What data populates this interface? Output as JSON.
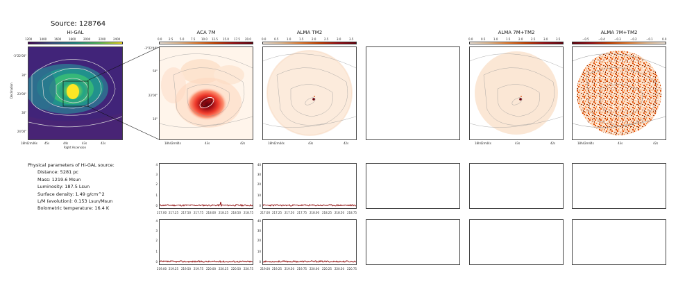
{
  "page": {
    "title": "Source: 128764"
  },
  "panels": {
    "higal": {
      "title": "Hi-GAL",
      "colorbar_ticks": [
        "1200",
        "1400",
        "1600",
        "1800",
        "2000",
        "2200",
        "2400"
      ],
      "y_ticks": [
        "-3°22'00\"",
        "30\"",
        "23'00\"",
        "30\"",
        "24'00\""
      ],
      "x_ticks": [
        "18h42m46s",
        "45s",
        "44s",
        "43s",
        "42s"
      ],
      "xlabel": "Right Ascension",
      "ylabel": "Declination"
    },
    "aca": {
      "title": "ACA 7M",
      "colorbar_ticks": [
        "0.0",
        "2.5",
        "5.0",
        "7.5",
        "10.0",
        "12.5",
        "15.0",
        "17.5",
        "20.0"
      ],
      "y_ticks": [
        "-3°22'40\"",
        "50\"",
        "23'00\"",
        "10\""
      ],
      "x_ticks": [
        "18h42m44s",
        "43s",
        "42s"
      ]
    },
    "tm2": {
      "title": "ALMA TM2",
      "colorbar_ticks": [
        "0.0",
        "0.5",
        "1.0",
        "1.5",
        "2.0",
        "2.5",
        "3.0",
        "3.5"
      ],
      "x_ticks": [
        "18h42m44s",
        "43s",
        "42s"
      ]
    },
    "combo": {
      "title": "ALMA 7M+TM2",
      "colorbar_ticks": [
        "0.0",
        "0.5",
        "1.0",
        "1.5",
        "2.0",
        "2.5",
        "3.0",
        "3.5"
      ],
      "x_ticks": [
        "18h42m44s",
        "43s",
        "42s"
      ]
    },
    "diff": {
      "title": "ALMA 7M+TM2",
      "colorbar_ticks": [
        "−0.5",
        "−0.4",
        "−0.3",
        "−0.2",
        "−0.1",
        "0.0"
      ],
      "x_ticks": [
        "18h42m44s",
        "43s",
        "42s"
      ]
    }
  },
  "parameters": {
    "heading": "Physical parameters of Hi-GAL source:",
    "distance": "Distance: 5281 pc",
    "mass": "Mass: 1219.6 Msun",
    "luminosity": "Luminosity: 187.5 Lsun",
    "surface_density": "Surface density: 1.49 g/cm^2",
    "lm": "L/M (evolution): 0.153 Lsun/Msun",
    "tbol": "Bolometric temperature: 16.4 K"
  },
  "spectra": {
    "row1": {
      "a_y_ticks": [
        "4",
        "3",
        "2",
        "1",
        "0"
      ],
      "b_y_ticks": [
        "40",
        "30",
        "20",
        "10",
        "0"
      ],
      "x_ticks": [
        "217.00",
        "217.25",
        "217.50",
        "217.75",
        "218.00",
        "218.25",
        "218.50",
        "218.75"
      ]
    },
    "row2": {
      "a_y_ticks": [
        "4",
        "3",
        "2",
        "1",
        "0"
      ],
      "b_y_ticks": [
        "40",
        "30",
        "20",
        "10",
        "0"
      ],
      "x_ticks": [
        "219.00",
        "219.25",
        "219.50",
        "219.75",
        "220.00",
        "220.25",
        "220.50",
        "220.75"
      ]
    }
  },
  "colors": {
    "viridis_low": "#440154",
    "viridis_high": "#fde725",
    "spectrum_line": "#8b0000"
  }
}
